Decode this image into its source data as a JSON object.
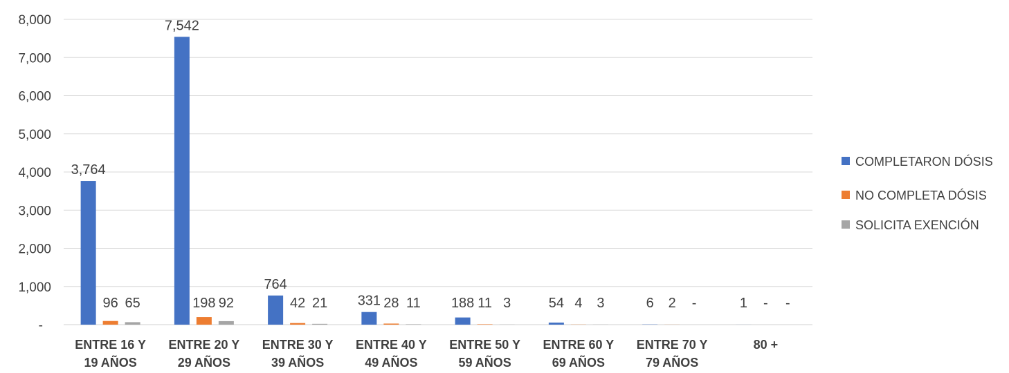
{
  "chart_data": {
    "type": "bar",
    "categories": [
      [
        "ENTRE 16 Y",
        "19 AÑOS"
      ],
      [
        "ENTRE 20 Y",
        "29 AÑOS"
      ],
      [
        "ENTRE 30 Y",
        "39 AÑOS"
      ],
      [
        "ENTRE 40 Y",
        "49 AÑOS"
      ],
      [
        "ENTRE 50 Y",
        "59 AÑOS"
      ],
      [
        "ENTRE 60 Y",
        "69 AÑOS"
      ],
      [
        "ENTRE 70 Y",
        "79 AÑOS"
      ],
      [
        "80 +"
      ]
    ],
    "series": [
      {
        "name": "COMPLETARON DÓSIS",
        "color": "#4472C4",
        "values": [
          3764,
          7542,
          764,
          331,
          188,
          54,
          6,
          1
        ],
        "labels": [
          "3,764",
          "7,542",
          "764",
          "331",
          "188",
          "54",
          "6",
          "1"
        ]
      },
      {
        "name": "NO COMPLETA DÓSIS",
        "color": "#ED7D31",
        "values": [
          96,
          198,
          42,
          28,
          11,
          4,
          2,
          0
        ],
        "labels": [
          "96",
          "198",
          "42",
          "28",
          "11",
          "4",
          "2",
          "-"
        ]
      },
      {
        "name": "SOLICITA EXENCIÓN",
        "color": "#A5A5A5",
        "values": [
          65,
          92,
          21,
          11,
          3,
          3,
          0,
          0
        ],
        "labels": [
          "65",
          "92",
          "21",
          "11",
          "3",
          "3",
          "-",
          "-"
        ]
      }
    ],
    "ylim": [
      0,
      8000
    ],
    "yticks": [
      0,
      1000,
      2000,
      3000,
      4000,
      5000,
      6000,
      7000,
      8000
    ],
    "ytick_labels": [
      "-",
      "1,000",
      "2,000",
      "3,000",
      "4,000",
      "5,000",
      "6,000",
      "7,000",
      "8,000"
    ],
    "grid": true,
    "legend_position": "right",
    "title": "",
    "xlabel": "",
    "ylabel": ""
  }
}
